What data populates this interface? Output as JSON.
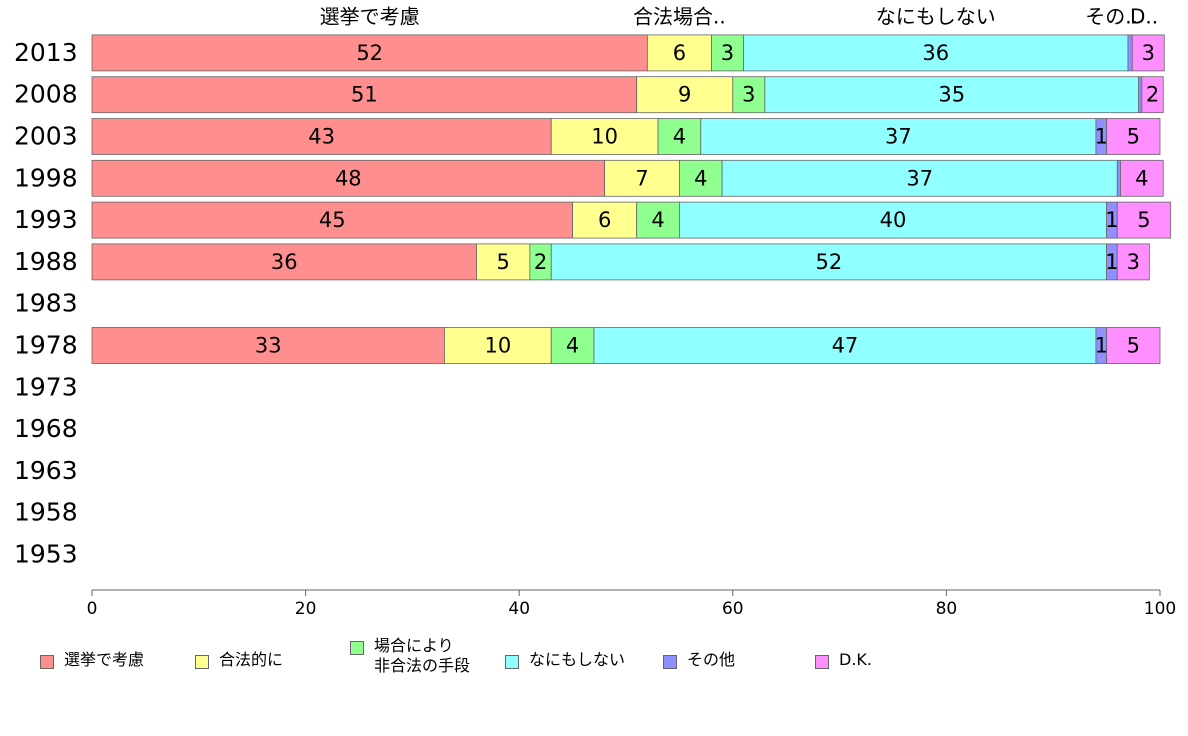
{
  "chart_data": {
    "type": "bar",
    "orientation": "horizontal",
    "stacked": true,
    "categories": [
      "2013",
      "2008",
      "2003",
      "1998",
      "1993",
      "1988",
      "1983",
      "1978",
      "1973",
      "1968",
      "1963",
      "1958",
      "1953"
    ],
    "series": [
      {
        "name": "選挙で考慮",
        "top_label": "選挙で考慮",
        "color": "#ff8f8f",
        "values": [
          52,
          51,
          43,
          48,
          45,
          36,
          null,
          33,
          null,
          null,
          null,
          null,
          null
        ]
      },
      {
        "name": "合法的に",
        "top_label": "合法場合..",
        "color": "#ffff8f",
        "values": [
          6,
          9,
          10,
          7,
          6,
          5,
          null,
          10,
          null,
          null,
          null,
          null,
          null
        ]
      },
      {
        "name": "場合により\n非合法の手段",
        "top_label": "",
        "color": "#8fff8f",
        "values": [
          3,
          3,
          4,
          4,
          4,
          2,
          null,
          4,
          null,
          null,
          null,
          null,
          null
        ]
      },
      {
        "name": "なにもしない",
        "top_label": "なにもしない",
        "color": "#8fffff",
        "values": [
          36,
          35,
          37,
          37,
          40,
          52,
          null,
          47,
          null,
          null,
          null,
          null,
          null
        ]
      },
      {
        "name": "その他",
        "top_label": "その..",
        "color": "#8f8fff",
        "values": [
          0.4,
          0.3,
          1,
          0.3,
          1,
          1,
          null,
          1,
          null,
          null,
          null,
          null,
          null
        ]
      },
      {
        "name": "D.K.",
        "top_label": "D..",
        "color": "#ff8fff",
        "values": [
          3,
          2,
          5,
          4,
          5,
          3,
          null,
          5,
          null,
          null,
          null,
          null,
          null
        ]
      }
    ],
    "xlim": [
      0,
      100
    ],
    "xticks": [
      0,
      20,
      40,
      60,
      80,
      100
    ],
    "xlabel": "",
    "ylabel": "",
    "title": "",
    "grid": false,
    "legend_position": "bottom"
  }
}
